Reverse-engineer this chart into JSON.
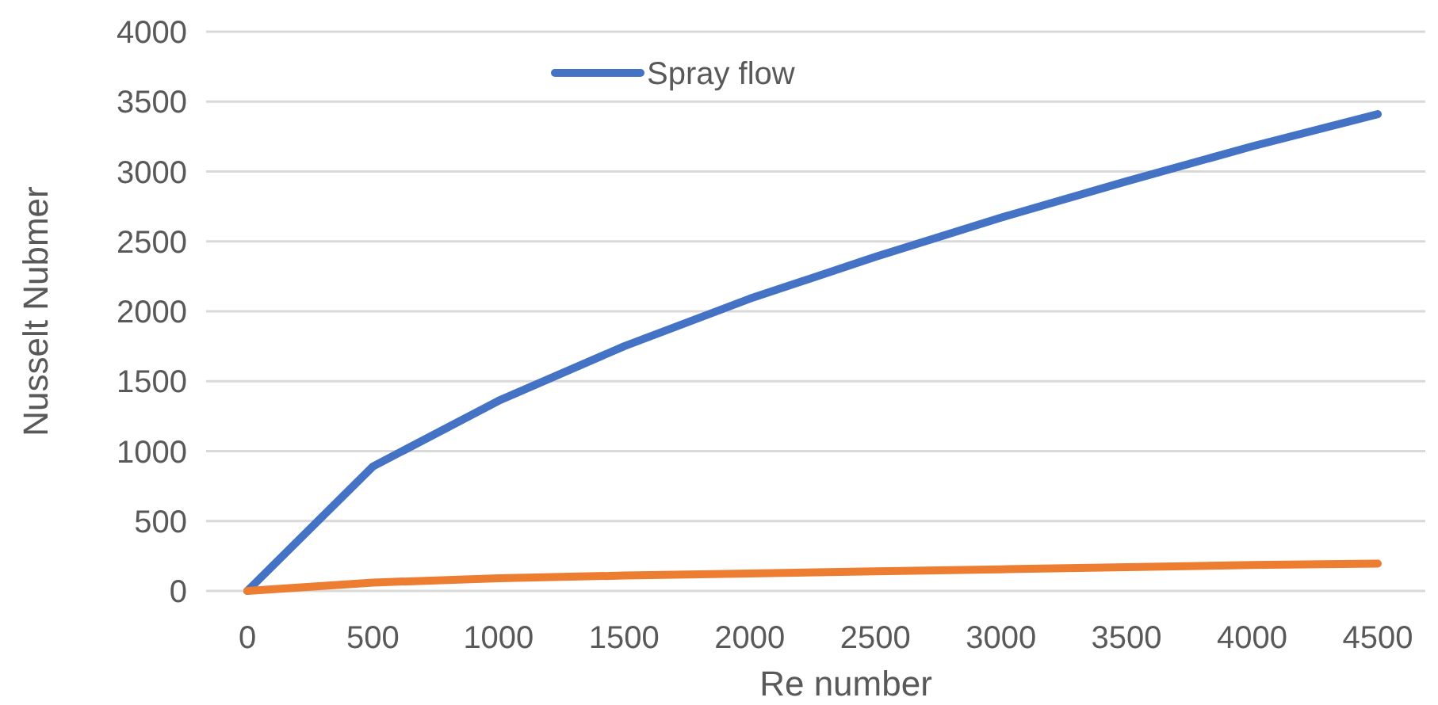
{
  "chart_data": {
    "type": "line",
    "xlabel": "Re number",
    "ylabel": "Nusselt Nubmer",
    "categories": [
      "0",
      "500",
      "1000",
      "1500",
      "2000",
      "2500",
      "3000",
      "3500",
      "4000",
      "4500"
    ],
    "series": [
      {
        "name": "Spray flow",
        "color": "#4472c4",
        "values": [
          0,
          890,
          1360,
          1750,
          2090,
          2390,
          2670,
          2930,
          3180,
          3410
        ]
      },
      {
        "color": "#ed7d31",
        "values": [
          0,
          60,
          90,
          110,
          125,
          140,
          155,
          170,
          185,
          195
        ]
      }
    ],
    "ylim": [
      0,
      4000
    ],
    "yticks": [
      0,
      500,
      1000,
      1500,
      2000,
      2500,
      3000,
      3500,
      4000
    ],
    "grid": "y",
    "legend": "top",
    "marker": "none",
    "line_style": "solid"
  }
}
